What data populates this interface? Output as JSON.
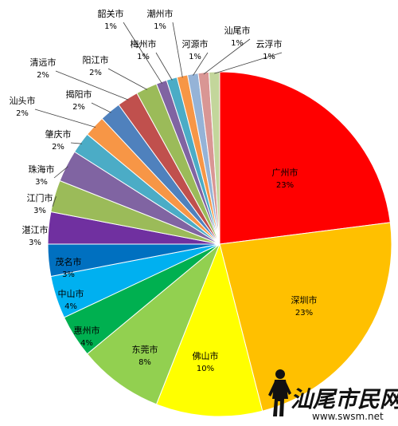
{
  "chart_data": {
    "type": "pie",
    "title": "",
    "start": "12 o'clock, clockwise",
    "slices": [
      {
        "name": "广州市",
        "value": 23,
        "label": "23%",
        "color": "#ff0000"
      },
      {
        "name": "深圳市",
        "value": 23,
        "label": "23%",
        "color": "#ffc000"
      },
      {
        "name": "佛山市",
        "value": 10,
        "label": "10%",
        "color": "#ffff00"
      },
      {
        "name": "东莞市",
        "value": 8,
        "label": "8%",
        "color": "#92d050"
      },
      {
        "name": "惠州市",
        "value": 4,
        "label": "4%",
        "color": "#00b050"
      },
      {
        "name": "中山市",
        "value": 4,
        "label": "4%",
        "color": "#00b0f0"
      },
      {
        "name": "茂名市",
        "value": 3,
        "label": "3%",
        "color": "#0070c0"
      },
      {
        "name": "湛江市",
        "value": 3,
        "label": "3%",
        "color": "#7030a0"
      },
      {
        "name": "江门市",
        "value": 3,
        "label": "3%",
        "color": "#9bbb59"
      },
      {
        "name": "珠海市",
        "value": 3,
        "label": "3%",
        "color": "#8064a2"
      },
      {
        "name": "肇庆市",
        "value": 2,
        "label": "2%",
        "color": "#4bacc6"
      },
      {
        "name": "汕头市",
        "value": 2,
        "label": "2%",
        "color": "#f79646"
      },
      {
        "name": "揭阳市",
        "value": 2,
        "label": "2%",
        "color": "#4f81bd"
      },
      {
        "name": "清远市",
        "value": 2,
        "label": "2%",
        "color": "#c0504d"
      },
      {
        "name": "阳江市",
        "value": 2,
        "label": "2%",
        "color": "#9bbb59"
      },
      {
        "name": "韶关市",
        "value": 1,
        "label": "1%",
        "color": "#8064a2"
      },
      {
        "name": "梅州市",
        "value": 1,
        "label": "1%",
        "color": "#4bacc6"
      },
      {
        "name": "潮州市",
        "value": 1,
        "label": "1%",
        "color": "#f79646"
      },
      {
        "name": "河源市",
        "value": 1,
        "label": "1%",
        "color": "#95b3d7"
      },
      {
        "name": "汕尾市",
        "value": 1,
        "label": "1%",
        "color": "#d99694"
      },
      {
        "name": "云浮市",
        "value": 1,
        "label": "1%",
        "color": "#c3d69b"
      }
    ]
  },
  "watermark": {
    "logo_text": "汕尾市民网",
    "url_text": "www.swsm.net"
  }
}
